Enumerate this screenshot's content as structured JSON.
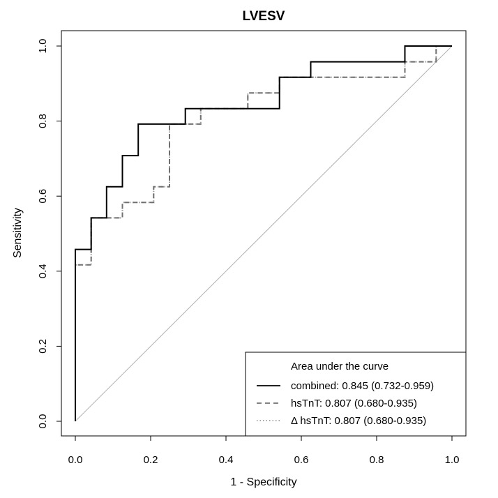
{
  "chart_data": {
    "type": "line",
    "title": "LVESV",
    "xlabel": "1 - Specificity",
    "ylabel": "Sensitivity",
    "xlim": [
      0,
      1
    ],
    "ylim": [
      0,
      1
    ],
    "xticks": [
      "0.0",
      "0.2",
      "0.4",
      "0.6",
      "0.8",
      "1.0"
    ],
    "yticks": [
      "0.0",
      "0.2",
      "0.4",
      "0.6",
      "0.8",
      "1.0"
    ],
    "grid": false,
    "reference_line": "diagonal",
    "legend": {
      "title": "Area under the curve",
      "position": "bottom-right"
    },
    "series": [
      {
        "name": "combined: 0.845 (0.732-0.959)",
        "color": "#000000",
        "style": "solid",
        "points": [
          [
            0,
            0
          ],
          [
            0,
            0.458
          ],
          [
            0.042,
            0.458
          ],
          [
            0.042,
            0.542
          ],
          [
            0.083,
            0.542
          ],
          [
            0.083,
            0.625
          ],
          [
            0.125,
            0.625
          ],
          [
            0.125,
            0.708
          ],
          [
            0.167,
            0.708
          ],
          [
            0.167,
            0.792
          ],
          [
            0.292,
            0.792
          ],
          [
            0.292,
            0.833
          ],
          [
            0.542,
            0.833
          ],
          [
            0.542,
            0.917
          ],
          [
            0.625,
            0.917
          ],
          [
            0.625,
            0.958
          ],
          [
            0.875,
            0.958
          ],
          [
            0.875,
            1
          ],
          [
            1,
            1
          ]
        ]
      },
      {
        "name": "hsTnT: 0.807 (0.680-0.935)",
        "color": "#707070",
        "style": "dashed",
        "points": [
          [
            0,
            0
          ],
          [
            0,
            0.417
          ],
          [
            0.042,
            0.417
          ],
          [
            0.042,
            0.542
          ],
          [
            0.125,
            0.542
          ],
          [
            0.125,
            0.583
          ],
          [
            0.208,
            0.583
          ],
          [
            0.208,
            0.625
          ],
          [
            0.25,
            0.625
          ],
          [
            0.25,
            0.792
          ],
          [
            0.333,
            0.792
          ],
          [
            0.333,
            0.833
          ],
          [
            0.458,
            0.833
          ],
          [
            0.458,
            0.875
          ],
          [
            0.542,
            0.875
          ],
          [
            0.542,
            0.917
          ],
          [
            0.875,
            0.917
          ],
          [
            0.875,
            0.958
          ],
          [
            0.958,
            0.958
          ],
          [
            0.958,
            1
          ],
          [
            1,
            1
          ]
        ]
      },
      {
        "name": "Δ hsTnT: 0.807 (0.680-0.935)",
        "color": "#9a9a9a",
        "style": "dotted",
        "points": [
          [
            0,
            0
          ],
          [
            0,
            0.417
          ],
          [
            0.042,
            0.417
          ],
          [
            0.042,
            0.542
          ],
          [
            0.125,
            0.542
          ],
          [
            0.125,
            0.583
          ],
          [
            0.208,
            0.583
          ],
          [
            0.208,
            0.625
          ],
          [
            0.25,
            0.625
          ],
          [
            0.25,
            0.792
          ],
          [
            0.333,
            0.792
          ],
          [
            0.333,
            0.833
          ],
          [
            0.458,
            0.833
          ],
          [
            0.458,
            0.875
          ],
          [
            0.542,
            0.875
          ],
          [
            0.542,
            0.917
          ],
          [
            0.875,
            0.917
          ],
          [
            0.875,
            0.958
          ],
          [
            0.958,
            0.958
          ],
          [
            0.958,
            1
          ],
          [
            1,
            1
          ]
        ]
      }
    ]
  }
}
